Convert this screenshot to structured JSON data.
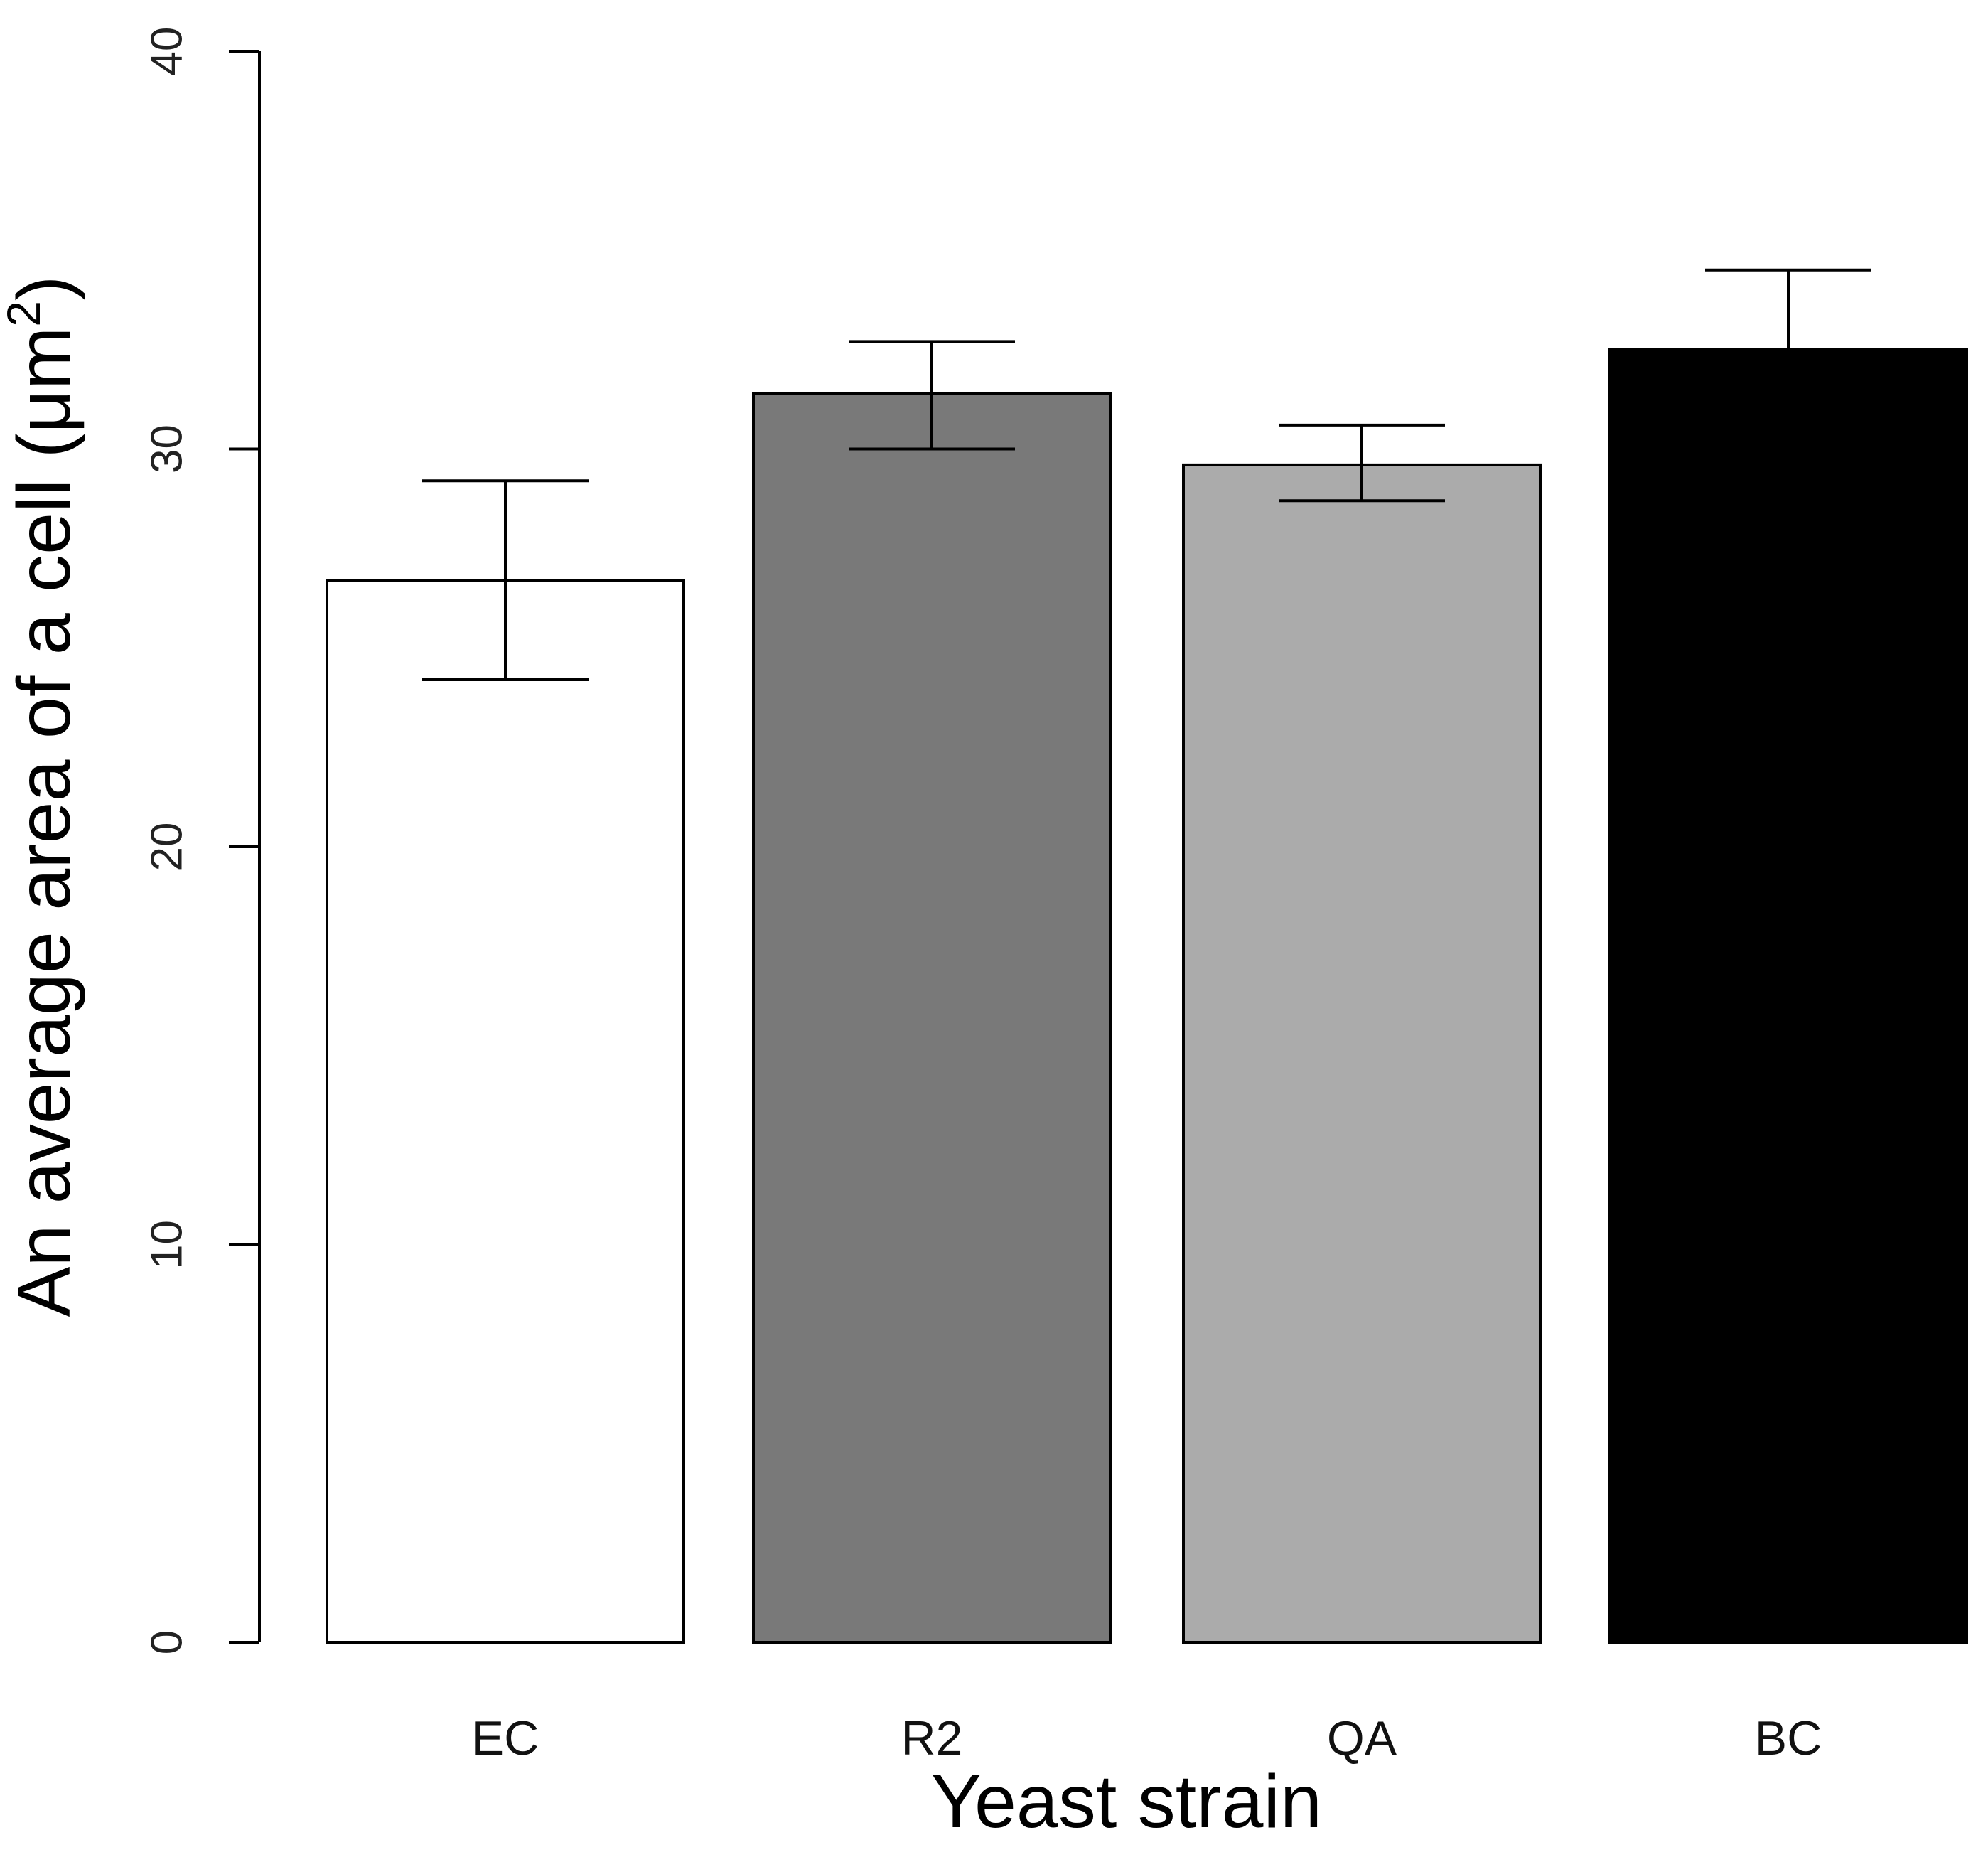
{
  "chart_data": {
    "type": "bar",
    "title": "",
    "xlabel": "Yeast strain",
    "ylabel": "An average area of a cell (μm²)",
    "ylabel_main": "An average area of a cell (μm",
    "ylabel_sup": "2",
    "ylabel_close": ")",
    "ylim": [
      0,
      40
    ],
    "yticks": [
      0,
      10,
      20,
      30,
      40
    ],
    "categories": [
      "EC",
      "R2",
      "QA",
      "BC"
    ],
    "values": [
      26.7,
      31.4,
      29.6,
      32.5
    ],
    "error_upper": [
      29.2,
      32.7,
      30.6,
      34.5
    ],
    "error_lower": [
      24.2,
      30.0,
      28.7,
      32.5
    ],
    "bar_colors": [
      "#ffffff",
      "#797979",
      "#ababab",
      "#000000"
    ],
    "grid": false,
    "legend": "none"
  }
}
